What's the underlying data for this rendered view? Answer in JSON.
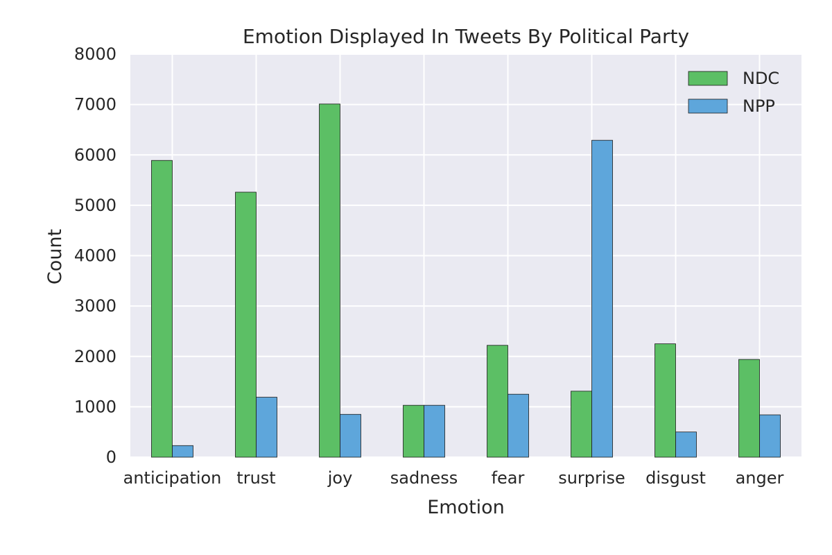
{
  "chart_data": {
    "type": "bar",
    "title": "Emotion Displayed In Tweets By Political Party",
    "xlabel": "Emotion",
    "ylabel": "Count",
    "categories": [
      "anticipation",
      "trust",
      "joy",
      "sadness",
      "fear",
      "surprise",
      "disgust",
      "anger"
    ],
    "series": [
      {
        "name": "NDC",
        "color": "#5cbf65",
        "values": [
          5890,
          5260,
          7010,
          1030,
          2220,
          1310,
          2250,
          1940
        ]
      },
      {
        "name": "NPP",
        "color": "#5ea6db",
        "values": [
          230,
          1190,
          850,
          1030,
          1250,
          6290,
          500,
          840
        ]
      }
    ],
    "ylim": [
      0,
      8000
    ],
    "yticks": [
      0,
      1000,
      2000,
      3000,
      4000,
      5000,
      6000,
      7000,
      8000
    ],
    "grid": true,
    "legend_position": "top-right",
    "plot_background": "#eaeaf2"
  }
}
